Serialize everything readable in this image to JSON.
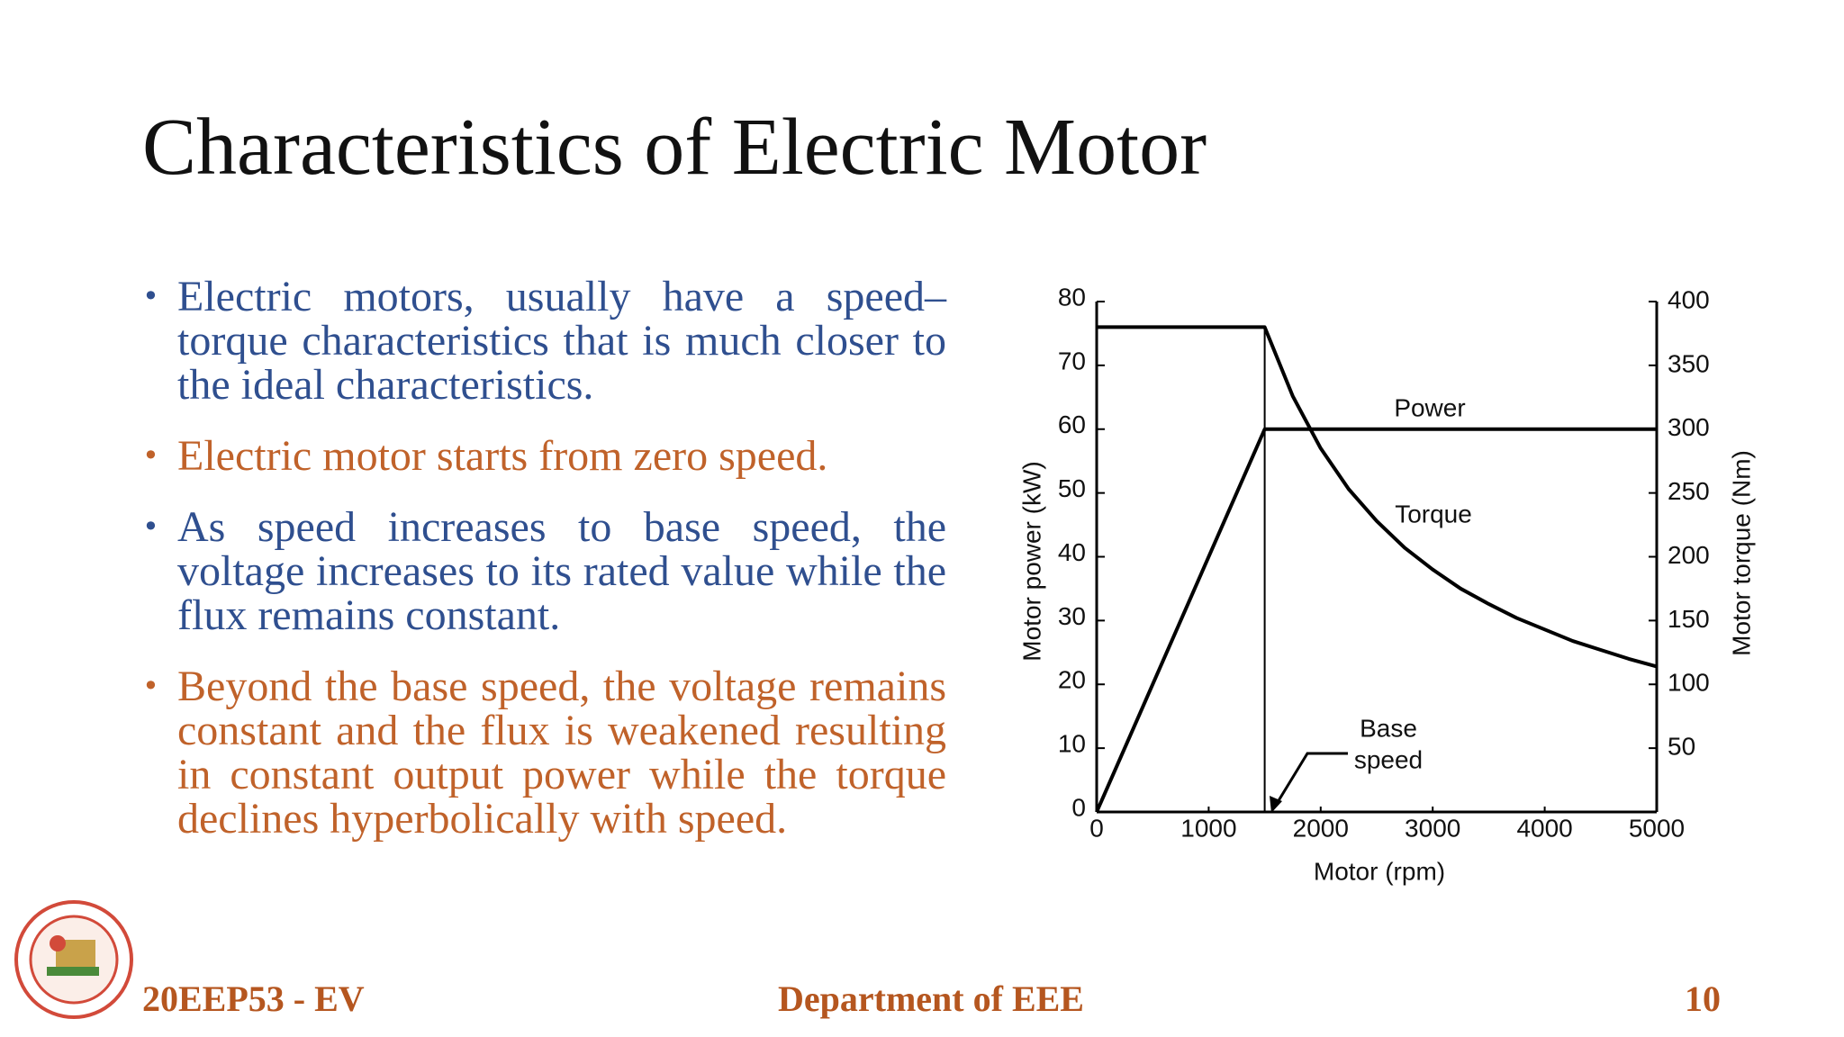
{
  "slide": {
    "title": "Characteristics of Electric Motor",
    "bullets": [
      {
        "text": "Electric motors, usually have a speed–torque characteristics that is much closer to the ideal characteristics.",
        "color": "#2f4f8f"
      },
      {
        "text": "Electric motor starts from zero speed.",
        "color": "#c0622a"
      },
      {
        "text": "As speed increases to base speed, the voltage increases to its rated value while the flux remains constant.",
        "color": "#2f4f8f"
      },
      {
        "text": "Beyond the base speed, the voltage remains constant and the flux is weakened resulting in constant output power while the torque declines hyperbolically with speed.",
        "color": "#c0622a"
      }
    ],
    "footer": {
      "left": "20EEP53 - EV",
      "center": "Department of EEE",
      "right": "10"
    }
  },
  "chart_data": {
    "type": "line",
    "xlabel": "Motor (rpm)",
    "ylabel": "Motor power (kW)",
    "y2label": "Motor torque (Nm)",
    "x": [
      0,
      1500,
      1750,
      2000,
      2250,
      2500,
      2750,
      3000,
      3250,
      3500,
      3750,
      4000,
      4250,
      4500,
      4750,
      5000
    ],
    "series": [
      {
        "name": "Power",
        "color": "#000000",
        "values": [
          0,
          60,
          60,
          60,
          60,
          60,
          60,
          60,
          60,
          60,
          60,
          60,
          60,
          60,
          60,
          60
        ]
      },
      {
        "name": "Torque",
        "color": "#000000",
        "axis": "y2",
        "values": [
          380,
          380,
          326,
          285,
          253,
          228,
          207,
          190,
          175,
          163,
          152,
          143,
          134,
          127,
          120,
          114
        ]
      }
    ],
    "annotations": [
      "Base",
      "speed"
    ],
    "vlines": [
      1500
    ],
    "xlim": [
      0,
      5000
    ],
    "xticks": [
      0,
      1000,
      2000,
      3000,
      4000,
      5000
    ],
    "ylim": [
      0,
      80
    ],
    "yticks": [
      0,
      10,
      20,
      30,
      40,
      50,
      60,
      70,
      80
    ],
    "y2lim": [
      0,
      400
    ],
    "y2ticks": [
      50,
      100,
      150,
      200,
      250,
      300,
      350,
      400
    ]
  }
}
